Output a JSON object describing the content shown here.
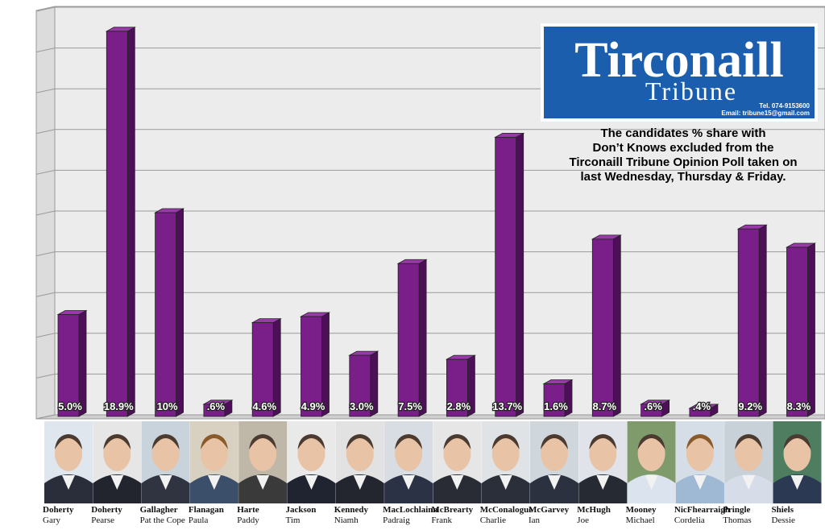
{
  "chart_data": {
    "type": "bar",
    "categories": [
      "Doherty",
      "Doherty",
      "Gallagher",
      "Flanagan",
      "Harte",
      "Jackson",
      "Kennedy",
      "MacLochlainn",
      "McBrearty",
      "McConalogue",
      "McGarvey",
      "McHugh",
      "Mooney",
      "NicFhearraigh",
      "Pringle",
      "Shiels"
    ],
    "first_names": [
      "Gary",
      "Pearse",
      "Pat the Cope",
      "Paula",
      "Paddy",
      "Tim",
      "Niamh",
      "Padraig",
      "Frank",
      "Charlie",
      "Ian",
      "Joe",
      "Michael",
      "Cordelia",
      "Thomas",
      "Dessie"
    ],
    "values": [
      5.0,
      18.9,
      10,
      0.6,
      4.6,
      4.9,
      3.0,
      7.5,
      2.8,
      13.7,
      1.6,
      8.7,
      0.6,
      0.4,
      9.2,
      8.3
    ],
    "value_labels": [
      "5.0%",
      "18.9%",
      "10%",
      ".6%",
      "4.6%",
      "4.9%",
      "3.0%",
      "7.5%",
      "2.8%",
      "13.7%",
      "1.6%",
      "8.7%",
      ".6%",
      ".4%",
      "9.2%",
      "8.3%"
    ],
    "color": "#7a1f8a",
    "ylim": [
      0,
      20
    ],
    "yticks": [
      0,
      2,
      4,
      6,
      8,
      10,
      12,
      14,
      16,
      18,
      20
    ],
    "grid": true,
    "logo": {
      "name": "Tirconaill",
      "subname": "Tribune",
      "tel": "Tel. 074-9153600",
      "email": "Email: tribune15@gmail.com"
    },
    "annotation": [
      "The candidates % share with",
      "Don’t Knows excluded from the",
      "Tirconaill Tribune Opinion Poll taken on",
      "last Wednesday, Thursday & Friday."
    ]
  }
}
